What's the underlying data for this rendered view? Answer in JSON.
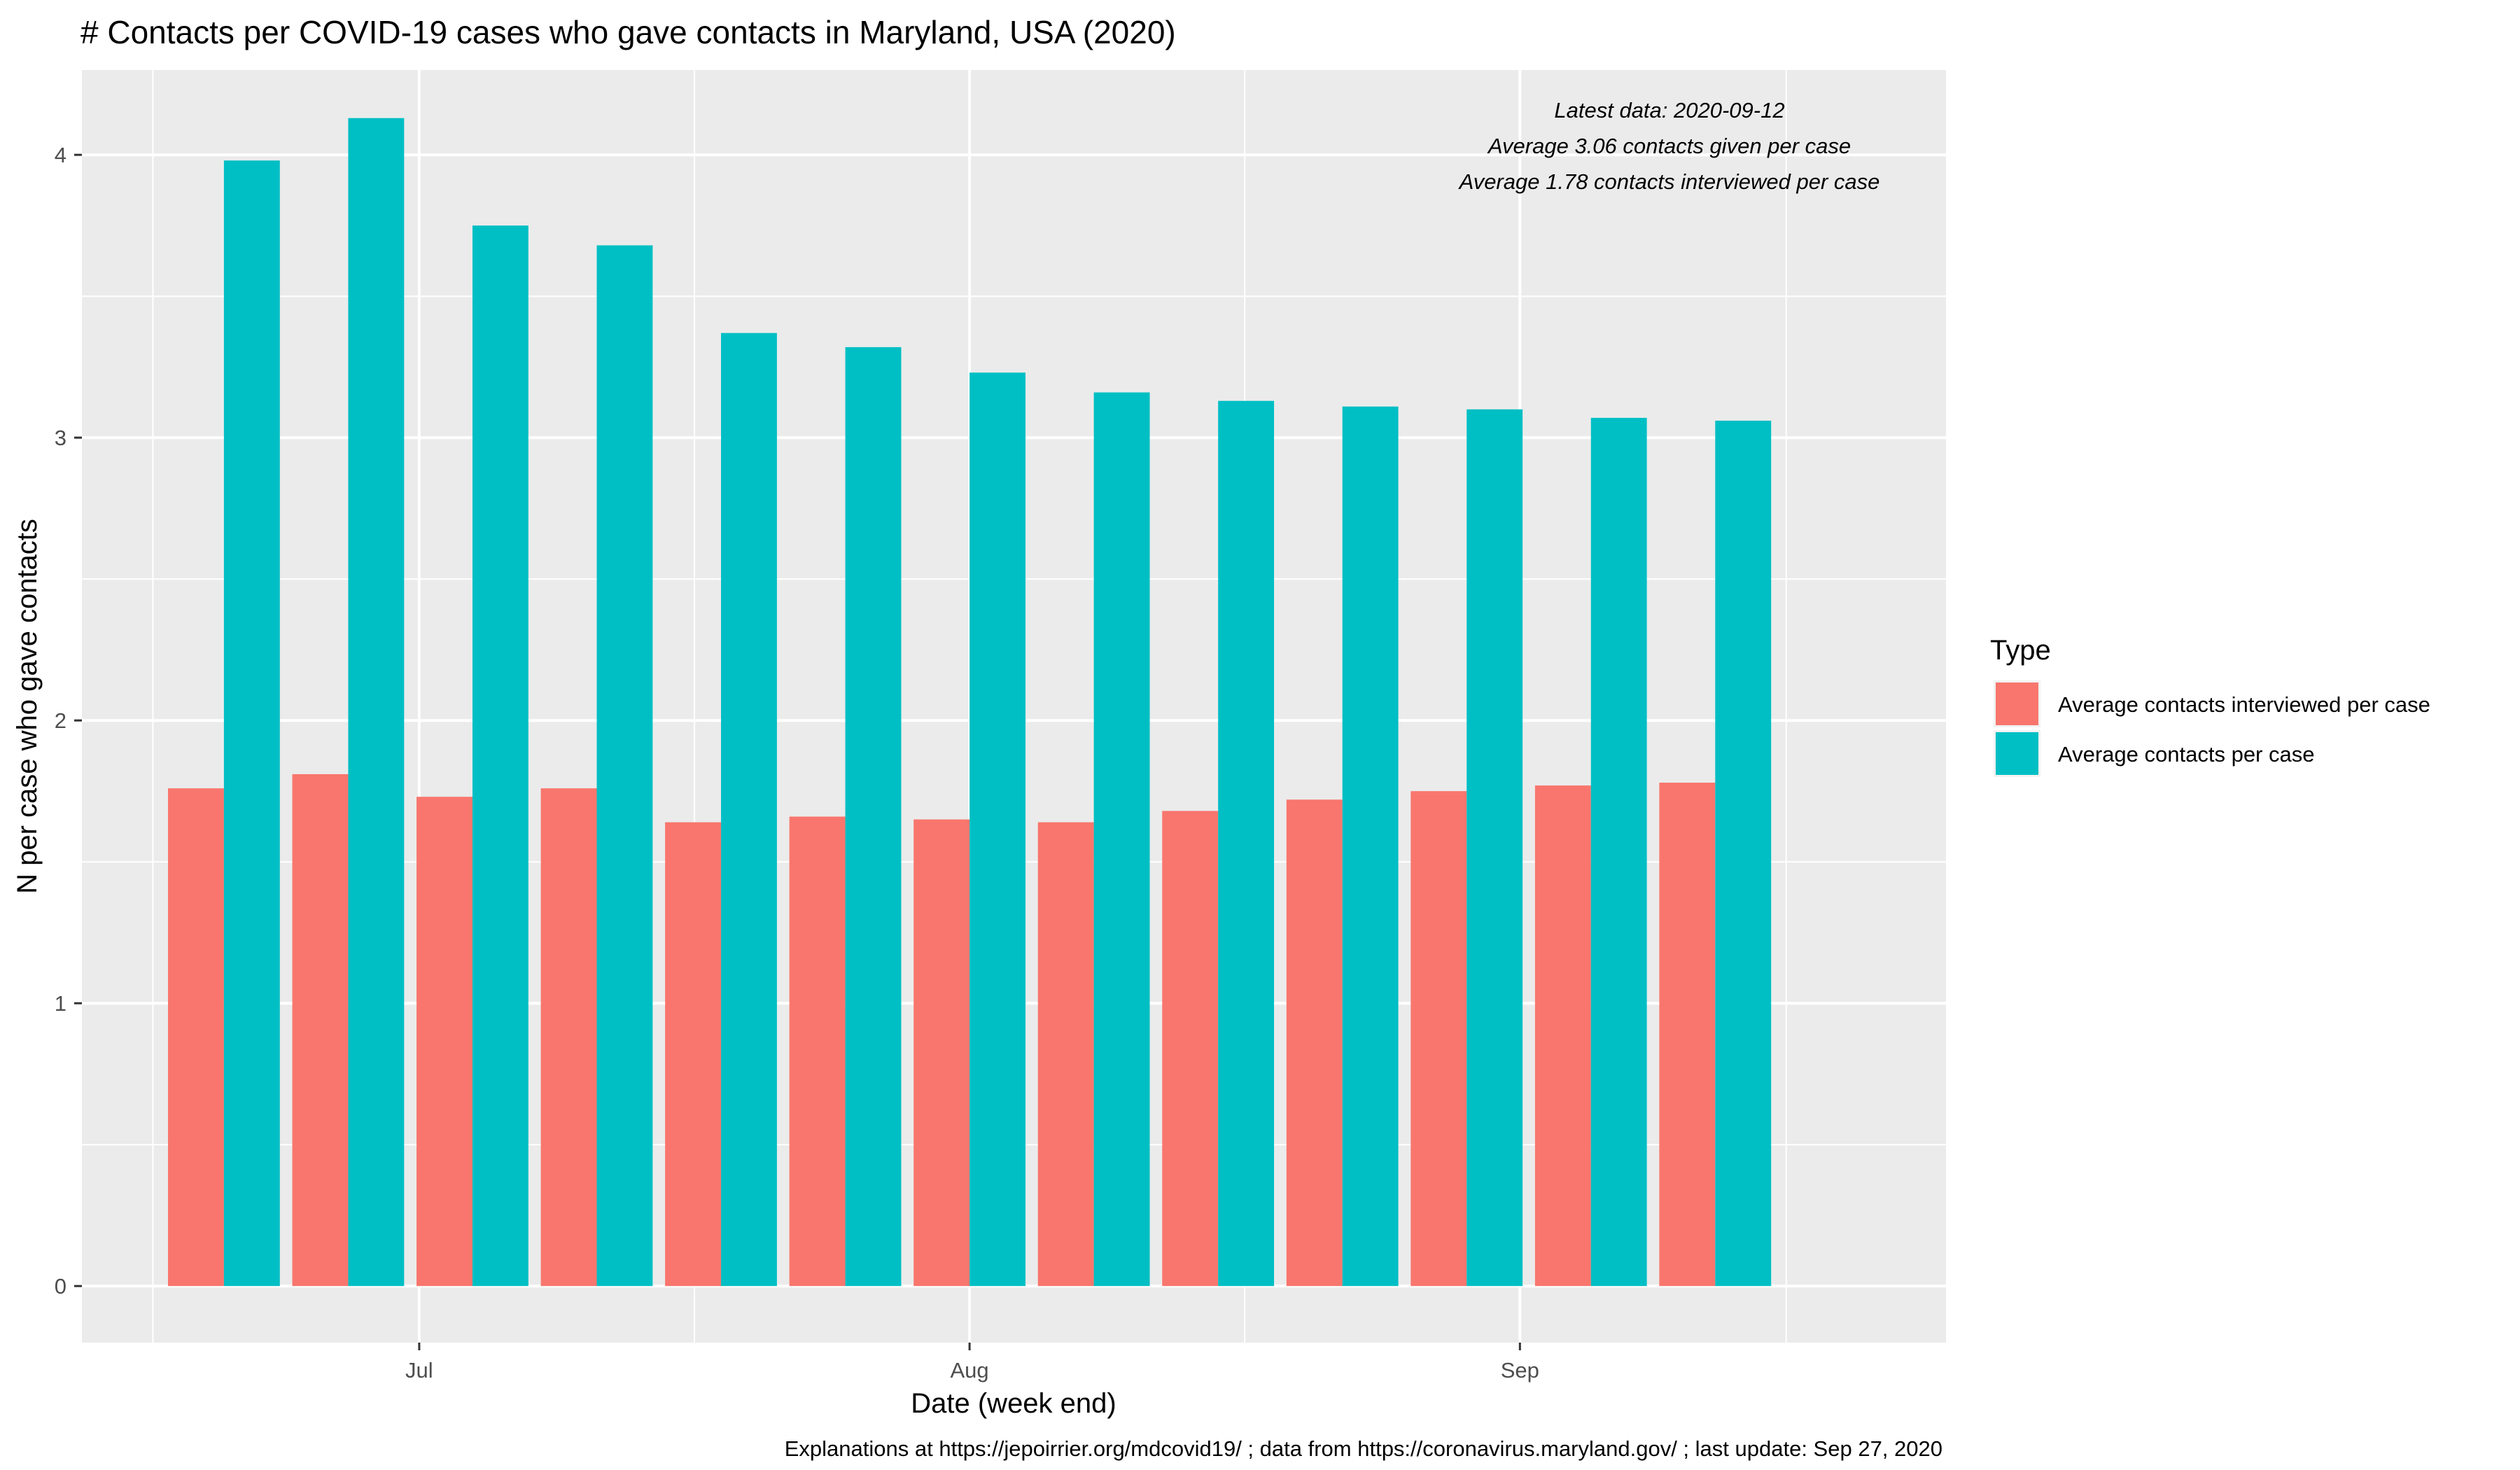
{
  "chart_data": {
    "type": "bar",
    "title": "# Contacts per COVID-19 cases who gave contacts in Maryland, USA (2020)",
    "xlabel": "Date (week end)",
    "ylabel": "N per case who gave contacts",
    "ylim": [
      -0.2,
      4.3
    ],
    "yticks": [
      0,
      1,
      2,
      3,
      4
    ],
    "x_range": [
      "2020-06-12",
      "2020-09-25"
    ],
    "x_ticks": [
      {
        "date": "2020-07-01",
        "label": "Jul"
      },
      {
        "date": "2020-08-01",
        "label": "Aug"
      },
      {
        "date": "2020-09-01",
        "label": "Sep"
      }
    ],
    "categories": [
      "2020-06-20",
      "2020-06-27",
      "2020-07-04",
      "2020-07-11",
      "2020-07-18",
      "2020-07-25",
      "2020-08-01",
      "2020-08-08",
      "2020-08-15",
      "2020-08-22",
      "2020-08-29",
      "2020-09-05",
      "2020-09-12"
    ],
    "series": [
      {
        "name": "Average contacts interviewed per case",
        "color": "#F8766D",
        "values": [
          1.76,
          1.81,
          1.73,
          1.76,
          1.64,
          1.66,
          1.65,
          1.64,
          1.68,
          1.72,
          1.75,
          1.77,
          1.78
        ]
      },
      {
        "name": "Average contacts per case",
        "color": "#00BFC4",
        "values": [
          3.98,
          4.13,
          3.75,
          3.68,
          3.37,
          3.32,
          3.23,
          3.16,
          3.13,
          3.11,
          3.1,
          3.07,
          3.06
        ]
      }
    ],
    "legend": {
      "title": "Type",
      "position": "right"
    },
    "grid": true,
    "annotations": [
      "Latest data: 2020-09-12",
      "Average 3.06 contacts given per case",
      "Average 1.78 contacts interviewed per case"
    ],
    "caption": "Explanations at https://jepoirrier.org/mdcovid19/ ; data from https://coronavirus.maryland.gov/ ; last update: Sep 27, 2020"
  }
}
